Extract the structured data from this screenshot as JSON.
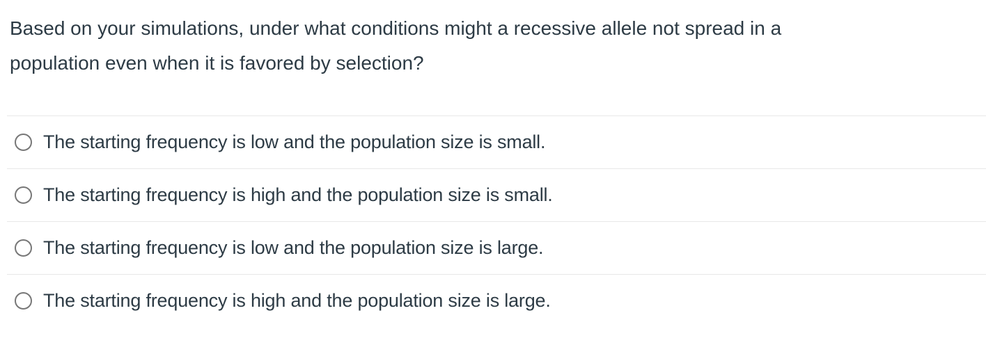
{
  "question": {
    "line1": "Based on your simulations, under what conditions might a recessive allele not spread in a",
    "line2": "population even when it is favored by selection?"
  },
  "options": [
    {
      "label": "The starting frequency is low and the population size is small.",
      "selected": false
    },
    {
      "label": "The starting frequency is high and the population size is small.",
      "selected": false
    },
    {
      "label": "The starting frequency is low and the population size is large.",
      "selected": false
    },
    {
      "label": "The starting frequency is high and the population size is large.",
      "selected": false
    }
  ],
  "colors": {
    "text": "#2D3B45",
    "divider": "#E8E8E8",
    "radio_border": "#777777",
    "background": "#FFFFFF"
  }
}
